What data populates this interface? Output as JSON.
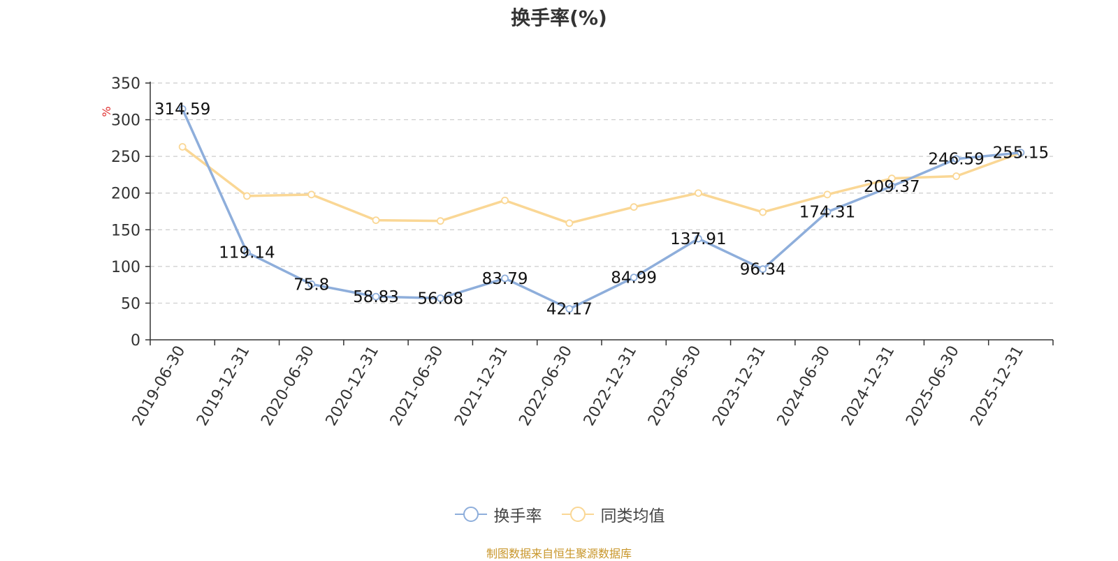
{
  "chart_data": {
    "type": "line",
    "title": "换手率(%)",
    "ylabel": "%",
    "xlabel": "",
    "ylim": [
      0,
      350
    ],
    "yticks": [
      0,
      50,
      100,
      150,
      200,
      250,
      300,
      350
    ],
    "grid": true,
    "legend_position": "bottom-center",
    "categories": [
      "2019-06-30",
      "2019-12-31",
      "2020-06-30",
      "2020-12-31",
      "2021-06-30",
      "2021-12-31",
      "2022-06-30",
      "2022-12-31",
      "2023-06-30",
      "2023-12-31",
      "2024-06-30",
      "2024-12-31",
      "2025-06-30",
      "2025-12-31"
    ],
    "series": [
      {
        "name": "换手率",
        "color": "#8eaedb",
        "show_labels": true,
        "values": [
          314.59,
          119.14,
          75.8,
          58.83,
          56.68,
          83.79,
          42.17,
          84.99,
          137.91,
          96.34,
          174.31,
          209.37,
          246.59,
          255.15
        ]
      },
      {
        "name": "同类均值",
        "color": "#fad795",
        "show_labels": false,
        "values": [
          263,
          196,
          198,
          163,
          162,
          190,
          159,
          181,
          200,
          174,
          198,
          220,
          223,
          255
        ]
      }
    ]
  },
  "source_note": "制图数据来自恒生聚源数据库"
}
